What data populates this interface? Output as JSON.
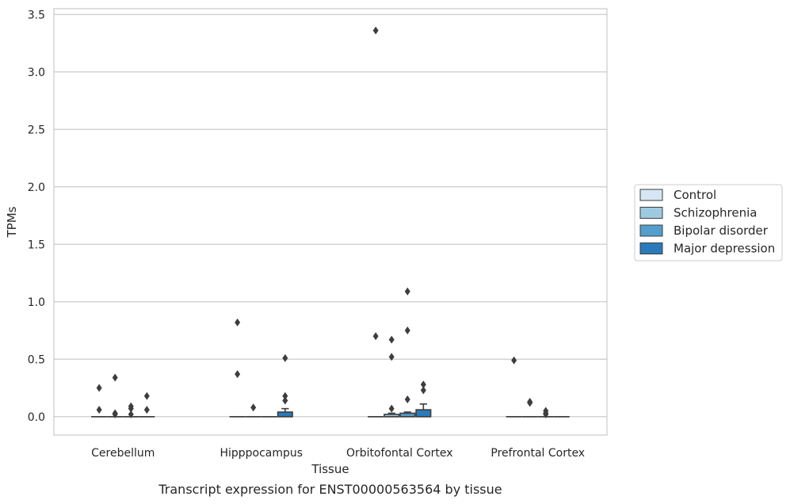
{
  "chart_data": {
    "type": "box",
    "title": "Transcript expression for ENST00000563564 by tissue",
    "xlabel": "Tissue",
    "ylabel": "TPMs",
    "ylim": [
      -0.16,
      3.55
    ],
    "yticks": [
      0.0,
      0.5,
      1.0,
      1.5,
      2.0,
      2.5,
      3.0,
      3.5
    ],
    "ytick_labels": [
      "0.0",
      "0.5",
      "1.0",
      "1.5",
      "2.0",
      "2.5",
      "3.0",
      "3.5"
    ],
    "grid": "horizontal",
    "legend_position": "right",
    "categories": [
      "Cerebellum",
      "Hipppocampus",
      "Orbitofontal Cortex",
      "Prefrontal Cortex"
    ],
    "series": [
      {
        "name": "Control",
        "color": "#d6e6f4",
        "boxes": [
          {
            "q1": 0,
            "median": 0,
            "q3": 0,
            "whisker_low": 0,
            "whisker_high": 0,
            "outliers": [
              0.06,
              0.25
            ]
          },
          {
            "q1": 0,
            "median": 0,
            "q3": 0,
            "whisker_low": 0,
            "whisker_high": 0,
            "outliers": [
              0.37,
              0.82
            ]
          },
          {
            "q1": 0,
            "median": 0,
            "q3": 0,
            "whisker_low": 0,
            "whisker_high": 0,
            "outliers": [
              0.7,
              3.36
            ]
          },
          {
            "q1": 0,
            "median": 0,
            "q3": 0,
            "whisker_low": 0,
            "whisker_high": 0,
            "outliers": [
              0.49
            ]
          }
        ]
      },
      {
        "name": "Schizophrenia",
        "color": "#9ecae1",
        "boxes": [
          {
            "q1": 0,
            "median": 0,
            "q3": 0,
            "whisker_low": 0,
            "whisker_high": 0,
            "outliers": [
              0.02,
              0.03,
              0.34
            ]
          },
          {
            "q1": 0,
            "median": 0,
            "q3": 0,
            "whisker_low": 0,
            "whisker_high": 0,
            "outliers": [
              0.08
            ]
          },
          {
            "q1": 0,
            "median": 0,
            "q3": 0.02,
            "whisker_low": 0,
            "whisker_high": 0.03,
            "outliers": [
              0.07,
              0.52,
              0.67
            ]
          },
          {
            "q1": 0,
            "median": 0,
            "q3": 0,
            "whisker_low": 0,
            "whisker_high": 0,
            "outliers": [
              0.12,
              0.13
            ]
          }
        ]
      },
      {
        "name": "Bipolar disorder",
        "color": "#539ecd",
        "boxes": [
          {
            "q1": 0,
            "median": 0,
            "q3": 0,
            "whisker_low": 0,
            "whisker_high": 0,
            "outliers": [
              0.02,
              0.07,
              0.09
            ]
          },
          {
            "q1": 0,
            "median": 0,
            "q3": 0,
            "whisker_low": 0,
            "whisker_high": 0,
            "outliers": []
          },
          {
            "q1": 0,
            "median": 0,
            "q3": 0.03,
            "whisker_low": 0,
            "whisker_high": 0.04,
            "outliers": [
              0.15,
              0.75,
              1.09
            ]
          },
          {
            "q1": 0,
            "median": 0,
            "q3": 0,
            "whisker_low": 0,
            "whisker_high": 0,
            "outliers": [
              0.02,
              0.03,
              0.05
            ]
          }
        ]
      },
      {
        "name": "Major depression",
        "color": "#2b7bba",
        "boxes": [
          {
            "q1": 0,
            "median": 0,
            "q3": 0,
            "whisker_low": 0,
            "whisker_high": 0,
            "outliers": [
              0.06,
              0.18
            ]
          },
          {
            "q1": 0,
            "median": 0,
            "q3": 0.04,
            "whisker_low": 0,
            "whisker_high": 0.07,
            "outliers": [
              0.14,
              0.18,
              0.51
            ]
          },
          {
            "q1": 0,
            "median": 0,
            "q3": 0.06,
            "whisker_low": 0,
            "whisker_high": 0.11,
            "outliers": [
              0.23,
              0.28
            ]
          },
          {
            "q1": 0,
            "median": 0,
            "q3": 0,
            "whisker_low": 0,
            "whisker_high": 0,
            "outliers": []
          }
        ]
      }
    ]
  }
}
